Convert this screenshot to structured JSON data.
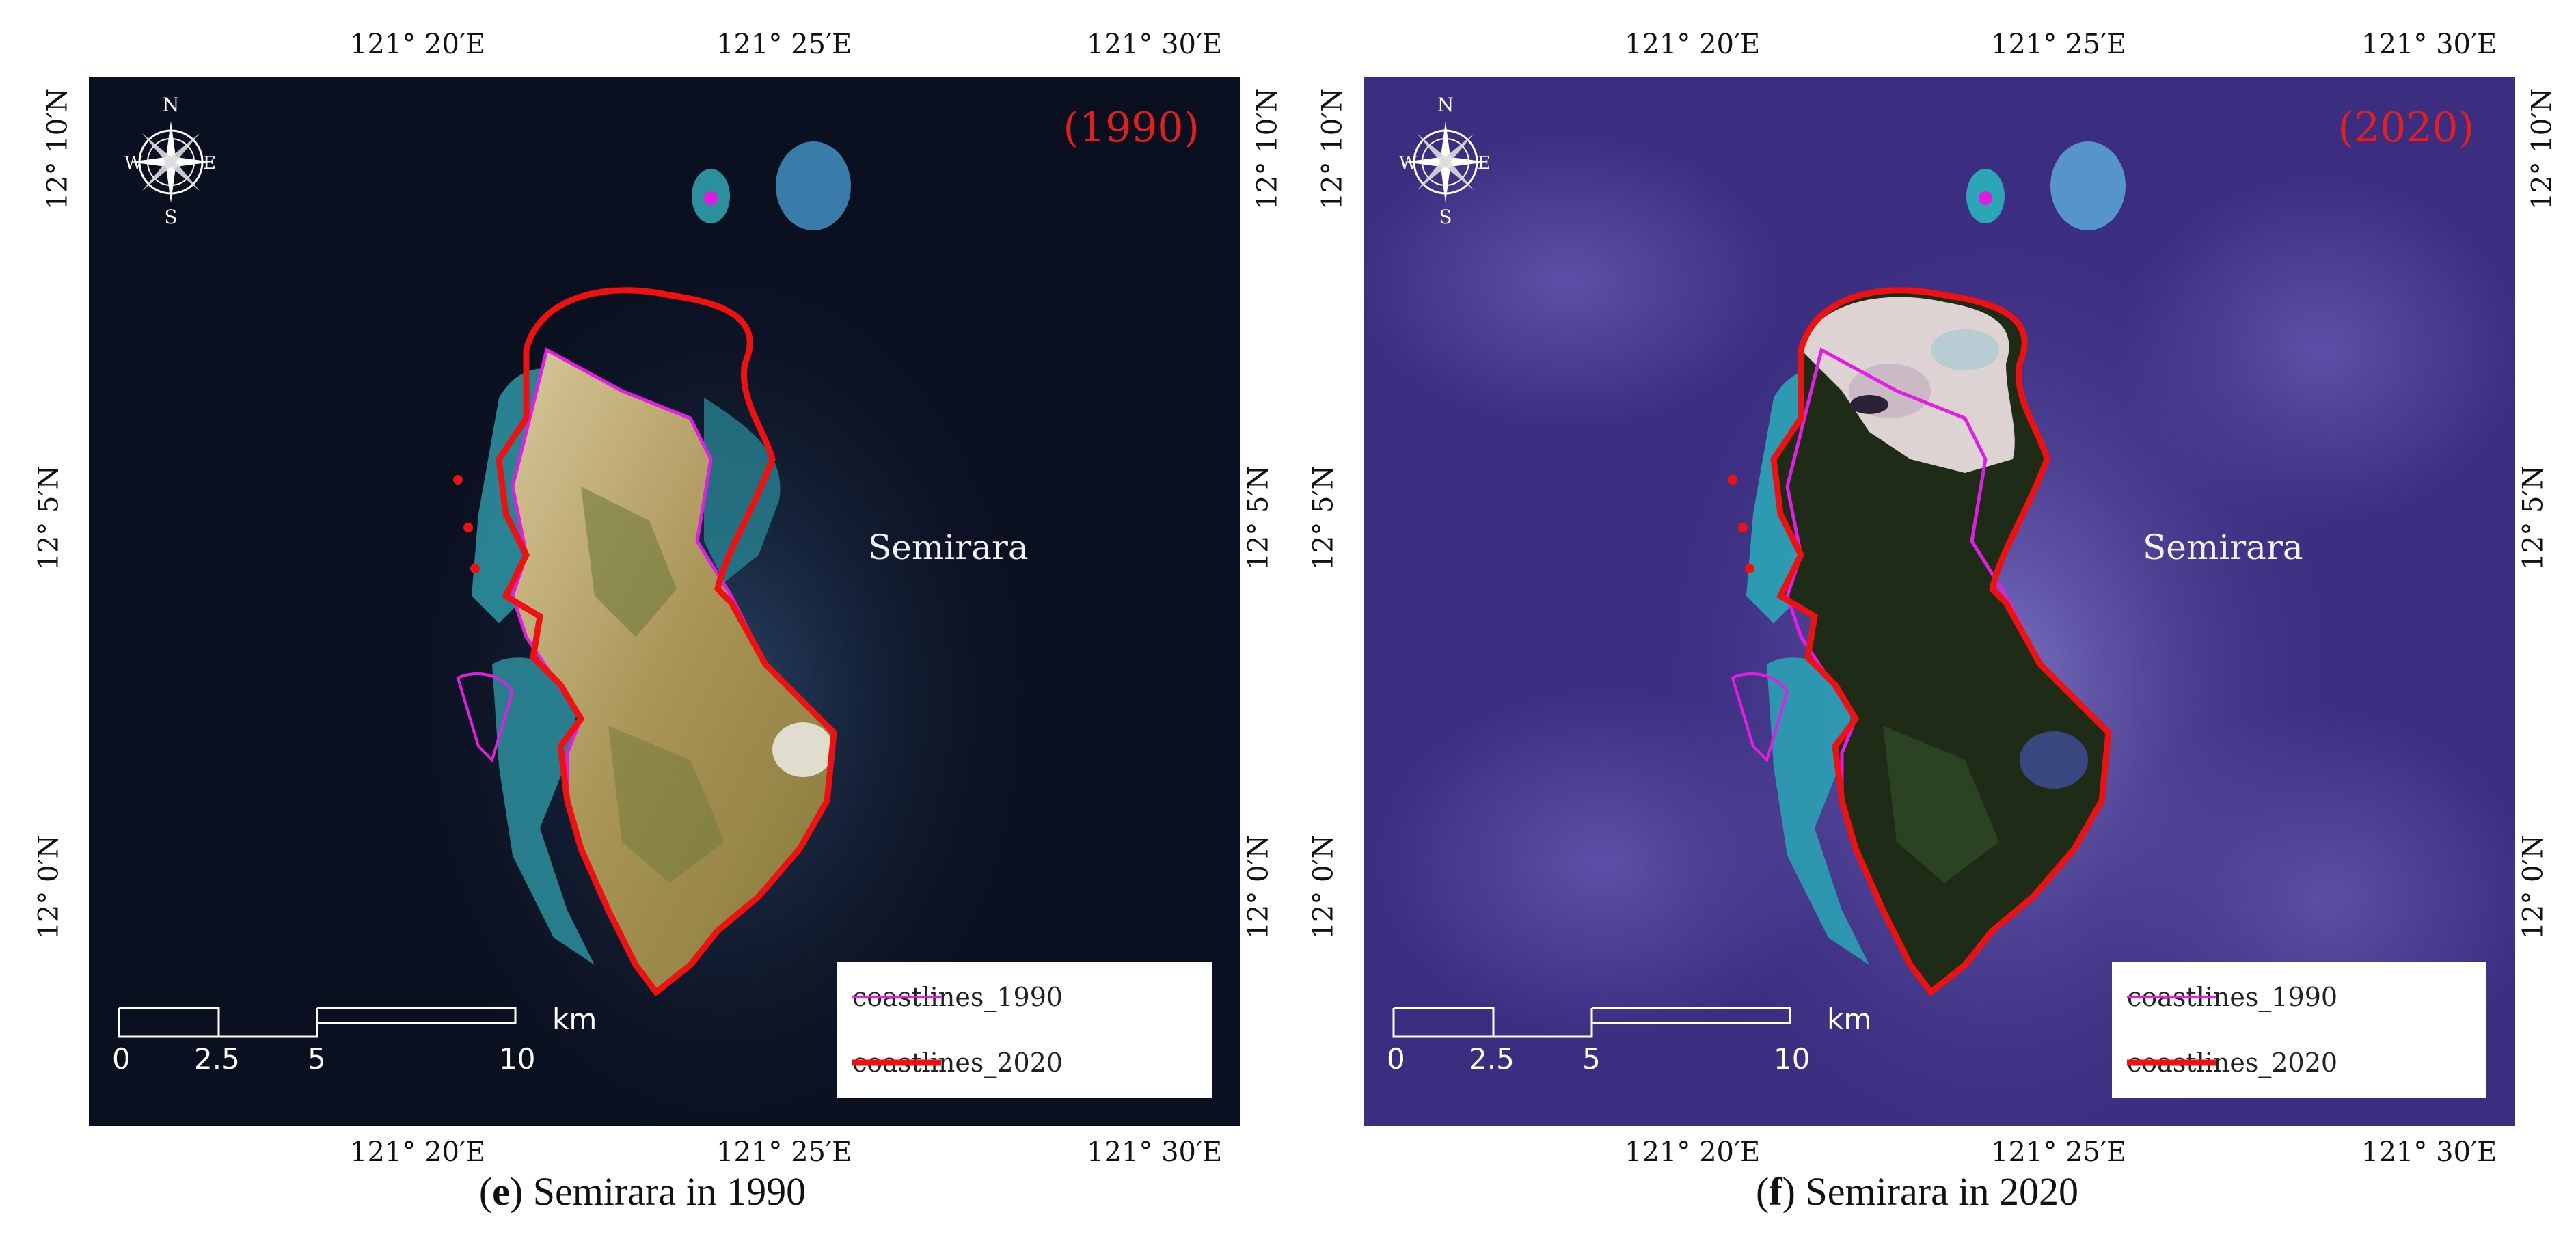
{
  "panels": [
    {
      "year_label": "(1990)",
      "place_label": "Semirara",
      "caption_letter": "e",
      "caption_text": " Semirara in 1990",
      "theme": {
        "sea": "#0b1020",
        "land": "#b49a5c",
        "veg": "#6f7a3c",
        "reef": "#2b8f9e",
        "haze": "none"
      }
    },
    {
      "year_label": "(2020)",
      "place_label": "Semirara",
      "caption_letter": "f",
      "caption_text": " Semirara in 2020",
      "theme": {
        "sea": "#3b2d80",
        "land": "#1d2b17",
        "veg": "#2f4a25",
        "reef": "#2aa6b6",
        "haze": "#7a6cc8"
      }
    }
  ],
  "axis": {
    "top_ticks": [
      "121° 20′E",
      "121° 25′E",
      "121° 30′E"
    ],
    "bottom_ticks": [
      "121° 20′E",
      "121° 25′E",
      "121° 30′E"
    ],
    "left_ticks": [
      "12° 10′N",
      "12° 5′N",
      "12° 0′N"
    ],
    "right_ticks": [
      "12° 10′N",
      "12° 5′N",
      "12° 0′N"
    ]
  },
  "compass": {
    "n": "N",
    "s": "S",
    "e": "E",
    "w": "W"
  },
  "legend": {
    "items": [
      {
        "label": "coastlines_1990",
        "color": "#e020e0"
      },
      {
        "label": "coastlines_2020",
        "color": "#ee1111"
      }
    ]
  },
  "scale_bar": {
    "labels": [
      "0",
      "2.5",
      "5",
      "10"
    ],
    "unit": "km"
  }
}
